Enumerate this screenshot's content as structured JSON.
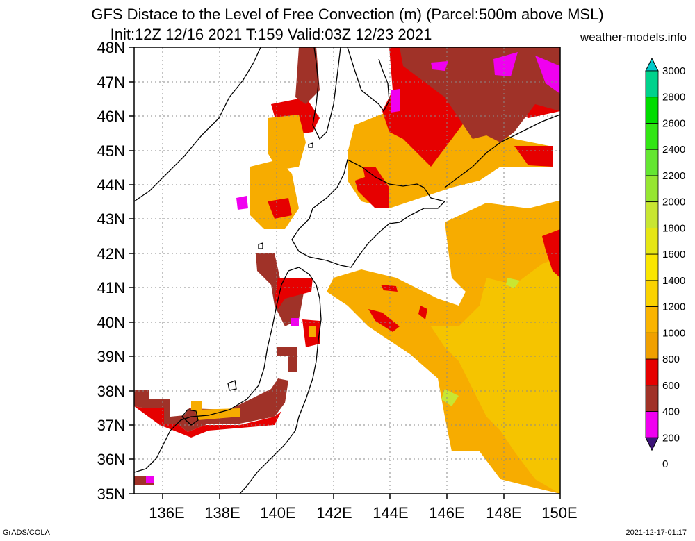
{
  "title_line1": "GFS Distace to the Level of Free Convection (m) (Parcel:500m above MSL)",
  "title_line2": "Init:12Z 12/16 2021 T:159 Valid:03Z 12/23 2021",
  "site": "weather-models.info",
  "footer_left": "GrADS/COLA",
  "footer_right": "2021-12-17-01:17",
  "lat_labels": [
    "48N",
    "47N",
    "46N",
    "45N",
    "44N",
    "43N",
    "42N",
    "41N",
    "40N",
    "39N",
    "38N",
    "37N",
    "36N",
    "35N"
  ],
  "lon_labels": [
    "136E",
    "138E",
    "140E",
    "142E",
    "144E",
    "146E",
    "148E",
    "150E"
  ],
  "colorbar_labels": [
    "3000",
    "2800",
    "2600",
    "2400",
    "2200",
    "2000",
    "1800",
    "1600",
    "1400",
    "1200",
    "1000",
    "800",
    "600",
    "400",
    "200",
    "0"
  ],
  "colorbar_colors": [
    "#00c8c8",
    "#00d28c",
    "#00dc00",
    "#32e614",
    "#64e632",
    "#96e632",
    "#c8e632",
    "#e6e614",
    "#fae600",
    "#fad200",
    "#fab400",
    "#f0a000",
    "#e60000",
    "#a03228",
    "#f000f0",
    "#3c1478"
  ],
  "map_data": {
    "region": {
      "lon_min": 135,
      "lon_max": 150,
      "lat_min": 35,
      "lat_max": 48
    },
    "field": "distance to LFC (m)"
  }
}
